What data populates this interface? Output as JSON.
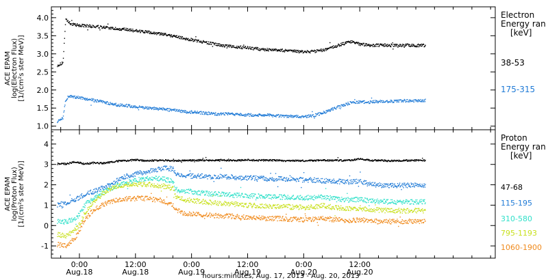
{
  "chart_data": [
    {
      "type": "scatter",
      "ylabel": [
        "ACE EPAM",
        "log(Electron Flux)",
        "[1/(cm²s ster MeV)]"
      ],
      "legend_title": [
        "Electron",
        "Energy ran",
        "[keV]"
      ],
      "ylim": [
        0.9,
        4.3
      ],
      "yticks": [
        "1.0",
        "1.5",
        "2.0",
        "2.5",
        "3.0",
        "3.5",
        "4.0"
      ],
      "yticks_values": [
        1.0,
        1.5,
        2.0,
        2.5,
        3.0,
        3.5,
        4.0
      ],
      "grid": false,
      "legend_position": "right",
      "series": [
        {
          "name": "38-53",
          "color": "#000000",
          "x": [
            -4.8,
            -4.2,
            -3.6,
            -3.3,
            -3.0,
            -2.5,
            -2,
            -1,
            0,
            2,
            4,
            6,
            8,
            10,
            12,
            14,
            16,
            18,
            20,
            22,
            24,
            26,
            28,
            30,
            32,
            34,
            36,
            38,
            40,
            42,
            44,
            46,
            48,
            50,
            52,
            54,
            56,
            58,
            60,
            62,
            64,
            66,
            68,
            70,
            72,
            73,
            74
          ],
          "y": [
            2.7,
            2.72,
            2.78,
            3.4,
            3.95,
            3.9,
            3.85,
            3.82,
            3.8,
            3.78,
            3.76,
            3.73,
            3.7,
            3.68,
            3.65,
            3.62,
            3.58,
            3.55,
            3.5,
            3.45,
            3.4,
            3.35,
            3.3,
            3.25,
            3.22,
            3.2,
            3.18,
            3.15,
            3.13,
            3.12,
            3.1,
            3.08,
            3.07,
            3.08,
            3.12,
            3.18,
            3.28,
            3.35,
            3.28,
            3.25,
            3.25,
            3.25,
            3.24,
            3.25,
            3.24,
            3.25,
            3.24
          ]
        },
        {
          "name": "175-315",
          "color": "#1f7ad6",
          "x": [
            -4.8,
            -4.2,
            -3.6,
            -3.3,
            -3.0,
            -2.5,
            -2,
            -1,
            0,
            2,
            4,
            6,
            8,
            10,
            12,
            14,
            16,
            18,
            20,
            22,
            24,
            26,
            28,
            30,
            32,
            34,
            36,
            38,
            40,
            42,
            44,
            46,
            48,
            50,
            52,
            54,
            56,
            58,
            60,
            62,
            64,
            66,
            68,
            70,
            72,
            73,
            74
          ],
          "y": [
            1.15,
            1.17,
            1.25,
            1.5,
            1.75,
            1.82,
            1.83,
            1.82,
            1.8,
            1.75,
            1.7,
            1.65,
            1.6,
            1.58,
            1.55,
            1.52,
            1.5,
            1.48,
            1.45,
            1.42,
            1.4,
            1.38,
            1.36,
            1.35,
            1.35,
            1.33,
            1.32,
            1.32,
            1.32,
            1.3,
            1.29,
            1.28,
            1.27,
            1.3,
            1.38,
            1.48,
            1.58,
            1.66,
            1.68,
            1.68,
            1.7,
            1.7,
            1.71,
            1.72,
            1.72,
            1.72,
            1.73
          ]
        }
      ]
    },
    {
      "type": "scatter",
      "ylabel": [
        "ACE EPAM",
        "log(Proton Flux)",
        "[1/(cm²s ster MeV)]"
      ],
      "legend_title": [
        "Proton",
        "Energy ran",
        "[keV]"
      ],
      "ylim": [
        -1.6,
        4.7
      ],
      "yticks": [
        "-1",
        "0",
        "1",
        "2",
        "3",
        "4"
      ],
      "yticks_values": [
        -1,
        0,
        1,
        2,
        3,
        4
      ],
      "grid": false,
      "legend_position": "right",
      "series": [
        {
          "name": "47-68",
          "color": "#000000",
          "x": [
            -4.8,
            -3,
            -1,
            1,
            3,
            5,
            7,
            8.5,
            10,
            12,
            14,
            16,
            18,
            20,
            22,
            24,
            26,
            28,
            30,
            32,
            34,
            36,
            38,
            40,
            42,
            44,
            46,
            48,
            50,
            52,
            54,
            56,
            58,
            60,
            62,
            64,
            66,
            68,
            70,
            72,
            74
          ],
          "y": [
            3.05,
            3.05,
            3.15,
            3.05,
            3.1,
            3.08,
            3.15,
            3.2,
            3.2,
            3.25,
            3.2,
            3.22,
            3.22,
            3.2,
            3.22,
            3.22,
            3.23,
            3.22,
            3.24,
            3.22,
            3.22,
            3.24,
            3.22,
            3.23,
            3.22,
            3.2,
            3.2,
            3.2,
            3.22,
            3.22,
            3.22,
            3.22,
            3.22,
            3.3,
            3.22,
            3.22,
            3.2,
            3.2,
            3.22,
            3.22,
            3.22
          ]
        },
        {
          "name": "115-195",
          "color": "#1f7ad6",
          "x": [
            -4.8,
            -3,
            -1,
            1,
            3,
            5,
            7,
            8.5,
            10,
            12,
            14,
            16,
            18,
            20,
            20.5,
            22,
            24,
            26,
            28,
            30,
            32,
            34,
            36,
            38,
            40,
            42,
            44,
            46,
            48,
            50,
            52,
            54,
            56,
            58,
            60,
            62,
            64,
            66,
            68,
            70,
            72,
            74
          ],
          "y": [
            1.05,
            1.1,
            1.3,
            1.55,
            1.7,
            1.9,
            2.1,
            2.3,
            2.45,
            2.55,
            2.65,
            2.75,
            2.85,
            2.8,
            2.55,
            2.5,
            2.45,
            2.45,
            2.42,
            2.42,
            2.4,
            2.38,
            2.36,
            2.35,
            2.33,
            2.32,
            2.3,
            2.28,
            2.27,
            2.25,
            2.22,
            2.2,
            2.18,
            2.15,
            2.2,
            2.05,
            2.02,
            2.0,
            2.0,
            2.0,
            2.0,
            2.0
          ]
        },
        {
          "name": "310-580",
          "color": "#2fe0c9",
          "x": [
            -4.8,
            -3,
            -1,
            0,
            1,
            3,
            5,
            7,
            8.5,
            10,
            12,
            14,
            16,
            18,
            20,
            20.5,
            22,
            24,
            26,
            28,
            30,
            32,
            34,
            36,
            38,
            40,
            42,
            44,
            46,
            48,
            50,
            52,
            54,
            56,
            58,
            60,
            62,
            64,
            66,
            68,
            70,
            72,
            74
          ],
          "y": [
            0.25,
            0.2,
            0.35,
            0.6,
            1.0,
            1.4,
            1.65,
            1.85,
            2.05,
            2.15,
            2.25,
            2.3,
            2.35,
            2.3,
            2.2,
            1.8,
            1.72,
            1.68,
            1.62,
            1.58,
            1.55,
            1.52,
            1.5,
            1.48,
            1.47,
            1.45,
            1.43,
            1.42,
            1.4,
            1.38,
            1.4,
            1.42,
            1.35,
            1.3,
            1.28,
            1.3,
            1.22,
            1.2,
            1.18,
            1.18,
            1.18,
            1.18,
            1.18
          ]
        },
        {
          "name": "795-1193",
          "color": "#c8e01c",
          "x": [
            -4.8,
            -3,
            -1,
            0,
            1,
            3,
            5,
            7,
            8.5,
            10,
            12,
            14,
            16,
            18,
            20,
            20.5,
            22,
            24,
            26,
            28,
            30,
            32,
            34,
            36,
            38,
            40,
            42,
            44,
            46,
            48,
            50,
            52,
            54,
            56,
            58,
            60,
            62,
            64,
            66,
            68,
            70,
            72,
            74
          ],
          "y": [
            -0.4,
            -0.5,
            -0.2,
            0.1,
            0.6,
            1.2,
            1.6,
            1.85,
            1.95,
            2.05,
            2.05,
            2.05,
            2.0,
            1.95,
            1.85,
            1.45,
            1.3,
            1.25,
            1.2,
            1.15,
            1.12,
            1.1,
            1.05,
            1.02,
            1.0,
            0.98,
            0.97,
            0.95,
            0.92,
            0.9,
            0.95,
            1.0,
            0.92,
            0.88,
            0.85,
            0.88,
            0.8,
            0.78,
            0.75,
            0.75,
            0.75,
            0.75,
            0.75
          ]
        },
        {
          "name": "1060-1900",
          "color": "#f08a1c",
          "x": [
            -4.8,
            -3,
            -1,
            0,
            1,
            3,
            5,
            7,
            8.5,
            10,
            12,
            14,
            16,
            18,
            20,
            20.5,
            22,
            24,
            26,
            28,
            30,
            32,
            34,
            36,
            38,
            40,
            42,
            44,
            46,
            48,
            50,
            52,
            54,
            56,
            58,
            60,
            62,
            64,
            66,
            68,
            70,
            72,
            74
          ],
          "y": [
            -0.9,
            -1.0,
            -0.6,
            -0.2,
            0.3,
            0.8,
            1.05,
            1.2,
            1.3,
            1.35,
            1.35,
            1.35,
            1.3,
            1.2,
            1.05,
            0.8,
            0.65,
            0.6,
            0.55,
            0.52,
            0.5,
            0.48,
            0.45,
            0.42,
            0.4,
            0.38,
            0.37,
            0.35,
            0.33,
            0.3,
            0.35,
            0.4,
            0.32,
            0.3,
            0.28,
            0.3,
            0.25,
            0.22,
            0.22,
            0.22,
            0.22,
            0.22,
            0.22
          ]
        }
      ]
    }
  ],
  "x_axis": {
    "xlim": [
      -6,
      89
    ],
    "xtick_values": [
      0,
      12,
      24,
      36,
      48,
      60
    ],
    "tick_times": [
      "0:00",
      "12:00",
      "0:00",
      "12:00",
      "0:00",
      "12:00"
    ],
    "tick_dates": [
      "Aug.18",
      "Aug.18",
      "Aug.19",
      "Aug.19",
      "Aug.20",
      "Aug.20"
    ],
    "xlabel": "hours:minutes, Aug. 17, 2013 - Aug. 20, 2013"
  }
}
